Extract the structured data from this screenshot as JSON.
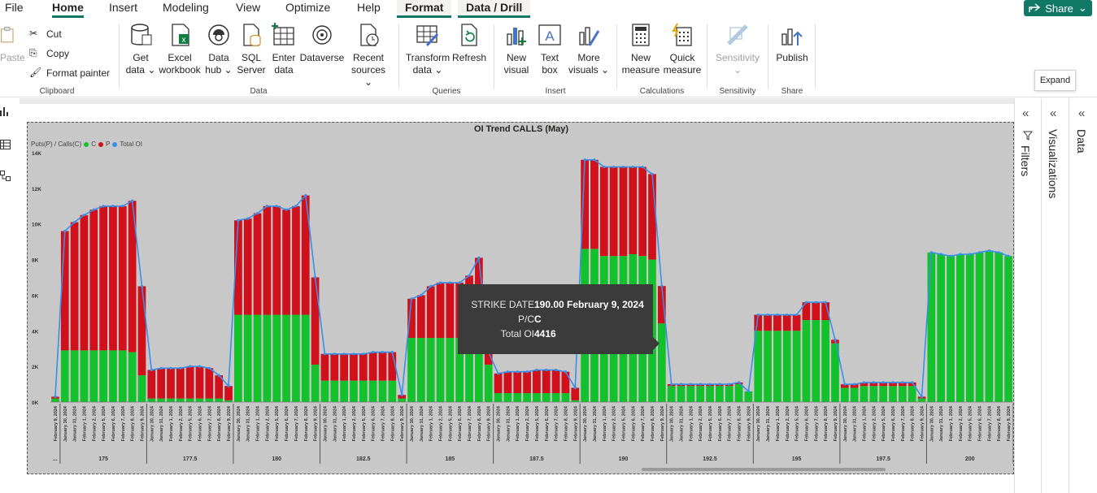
{
  "menu": {
    "tabs": [
      "File",
      "Home",
      "Insert",
      "Modeling",
      "View",
      "Optimize",
      "Help",
      "Format",
      "Data / Drill"
    ],
    "active": "Home",
    "share_label": "Share"
  },
  "ribbon": {
    "clipboard": {
      "paste": "Paste",
      "cut": "Cut",
      "copy": "Copy",
      "format_painter": "Format painter",
      "label": "Clipboard"
    },
    "data": {
      "label": "Data",
      "buttons": [
        [
          "Get",
          "data ⌄"
        ],
        [
          "Excel",
          "workbook"
        ],
        [
          "Data",
          "hub ⌄"
        ],
        [
          "SQL",
          "Server"
        ],
        [
          "Enter",
          "data"
        ],
        [
          "Dataverse",
          ""
        ],
        [
          "Recent",
          "sources ⌄"
        ]
      ]
    },
    "queries": {
      "label": "Queries",
      "buttons": [
        [
          "Transform",
          "data ⌄"
        ],
        [
          "Refresh",
          ""
        ]
      ]
    },
    "insert": {
      "label": "Insert",
      "buttons": [
        [
          "New",
          "visual"
        ],
        [
          "Text",
          "box"
        ],
        [
          "More",
          "visuals ⌄"
        ]
      ]
    },
    "calculations": {
      "label": "Calculations",
      "buttons": [
        [
          "New",
          "measure"
        ],
        [
          "Quick",
          "measure"
        ]
      ]
    },
    "sensitivity": {
      "label": "Sensitivity",
      "buttons": [
        [
          "Sensitivity",
          "⌄"
        ]
      ]
    },
    "share": {
      "label": "Share",
      "buttons": [
        [
          "Publish",
          ""
        ]
      ]
    }
  },
  "panes": {
    "filters": "Filters",
    "visualizations": "Visualizations",
    "data": "Data",
    "expand_tooltip": "Expand"
  },
  "colors": {
    "call": "#12c12c",
    "put": "#d0101a",
    "total": "#3a8fe8",
    "accent": "#117865"
  },
  "tooltip": {
    "rows": [
      {
        "key": "STRIKE DATE",
        "value": "190.00 February 9, 2024"
      },
      {
        "key": "P/C",
        "value": "C"
      },
      {
        "key": "Total OI",
        "value": "4416"
      }
    ]
  },
  "chart_data": {
    "type": "bar",
    "stacked": true,
    "title": "OI Trend CALLS (May)",
    "legend_title": "Puts(P) / Calls(C)",
    "legend": [
      "C",
      "P",
      "Total OI"
    ],
    "y_ticks": [
      "0K",
      "2K",
      "4K",
      "6K",
      "8K",
      "10K",
      "12K",
      "14K"
    ],
    "ylim": [
      0,
      14000
    ],
    "dates": [
      "January 30, 2024",
      "January 31, 2024",
      "February 1, 2024",
      "February 2, 2024",
      "February 5, 2024",
      "February 6, 2024",
      "February 7, 2024",
      "February 8, 2024",
      "February 9, 2024"
    ],
    "first_date": "February 9, 2024",
    "groups": [
      {
        "label": "",
        "C": [
          200
        ],
        "P": [
          100
        ]
      },
      {
        "label": "175",
        "C": [
          2900,
          2900,
          2900,
          2900,
          2900,
          2900,
          2900,
          2800,
          1500
        ],
        "P": [
          6700,
          7200,
          7600,
          7900,
          8100,
          8100,
          8100,
          8500,
          5000
        ]
      },
      {
        "label": "177.5",
        "C": [
          200,
          200,
          200,
          200,
          200,
          200,
          200,
          200,
          100
        ],
        "P": [
          1600,
          1700,
          1700,
          1700,
          1800,
          1800,
          1700,
          1300,
          800
        ]
      },
      {
        "label": "180",
        "C": [
          4900,
          4900,
          4900,
          4900,
          4900,
          4900,
          4900,
          4900,
          2100
        ],
        "P": [
          5300,
          5400,
          5700,
          6100,
          6100,
          5900,
          6100,
          6700,
          4900
        ]
      },
      {
        "label": "182.5",
        "C": [
          1200,
          1200,
          1200,
          1200,
          1200,
          1200,
          1200,
          1200,
          200
        ],
        "P": [
          1500,
          1500,
          1500,
          1500,
          1500,
          1600,
          1600,
          1600,
          200
        ]
      },
      {
        "label": "185",
        "C": [
          3600,
          3600,
          3600,
          3600,
          3600,
          3600,
          3600,
          3600,
          2100
        ],
        "P": [
          2200,
          2400,
          2900,
          3100,
          3100,
          3100,
          3500,
          4500,
          700
        ]
      },
      {
        "label": "187.5",
        "C": [
          500,
          500,
          500,
          500,
          500,
          500,
          500,
          500,
          100
        ],
        "P": [
          1100,
          1200,
          1200,
          1200,
          1300,
          1300,
          1300,
          1200,
          700
        ]
      },
      {
        "label": "190",
        "C": [
          8600,
          8600,
          8200,
          8200,
          8200,
          8300,
          8200,
          8000,
          4416
        ],
        "P": [
          5000,
          5000,
          5000,
          5000,
          5000,
          4900,
          5000,
          4800,
          2100
        ]
      },
      {
        "label": "192.5",
        "C": [
          900,
          900,
          900,
          900,
          900,
          900,
          900,
          1000,
          600
        ],
        "P": [
          100,
          100,
          100,
          100,
          100,
          100,
          100,
          100,
          0
        ]
      },
      {
        "label": "195",
        "C": [
          4000,
          4000,
          4000,
          4000,
          4000,
          4600,
          4600,
          4600,
          3300
        ],
        "P": [
          900,
          900,
          900,
          900,
          900,
          1000,
          1000,
          1000,
          200
        ]
      },
      {
        "label": "197.5",
        "C": [
          800,
          800,
          900,
          900,
          900,
          900,
          900,
          900,
          200
        ],
        "P": [
          200,
          200,
          200,
          200,
          200,
          200,
          200,
          200,
          100
        ]
      },
      {
        "label": "200",
        "C": [
          8400,
          8300,
          8200,
          8300,
          8300,
          8400,
          8500,
          8400,
          8200
        ],
        "P": [
          0,
          0,
          0,
          0,
          0,
          0,
          0,
          0,
          0
        ]
      }
    ]
  }
}
